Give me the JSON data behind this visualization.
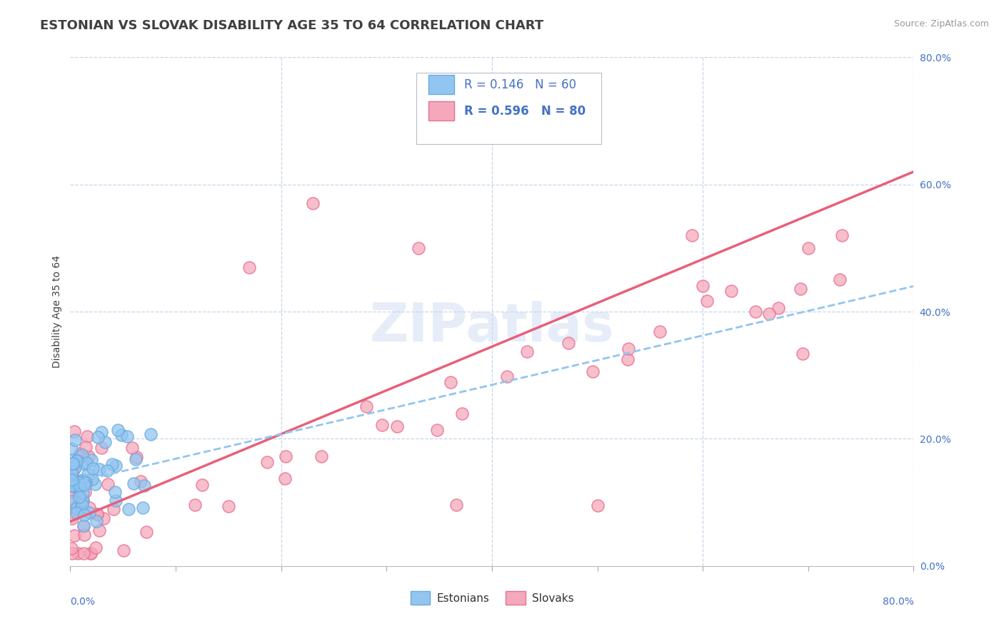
{
  "title": "ESTONIAN VS SLOVAK DISABILITY AGE 35 TO 64 CORRELATION CHART",
  "source": "Source: ZipAtlas.com",
  "ylabel": "Disability Age 35 to 64",
  "xlim": [
    0,
    0.8
  ],
  "ylim": [
    0,
    0.8
  ],
  "watermark": "ZIPatlas",
  "R_estonian": 0.146,
  "N_estonian": 60,
  "R_slovak": 0.596,
  "N_slovak": 80,
  "color_estonian": "#92C5F0",
  "color_slovak": "#F5A8BC",
  "color_estonian_edge": "#6aaae0",
  "color_slovak_edge": "#e87090",
  "color_estonian_line": "#92C5F0",
  "color_slovak_line": "#E8607A",
  "color_axis_labels": "#4472C4",
  "color_title": "#404040",
  "background_color": "#FFFFFF",
  "plot_bg_color": "#FFFFFF",
  "grid_color": "#C8D4E8",
  "title_fontsize": 13,
  "legend_fontsize": 12,
  "tick_fontsize": 10,
  "legend_label1": "Estonians",
  "legend_label2": "Slovaks"
}
